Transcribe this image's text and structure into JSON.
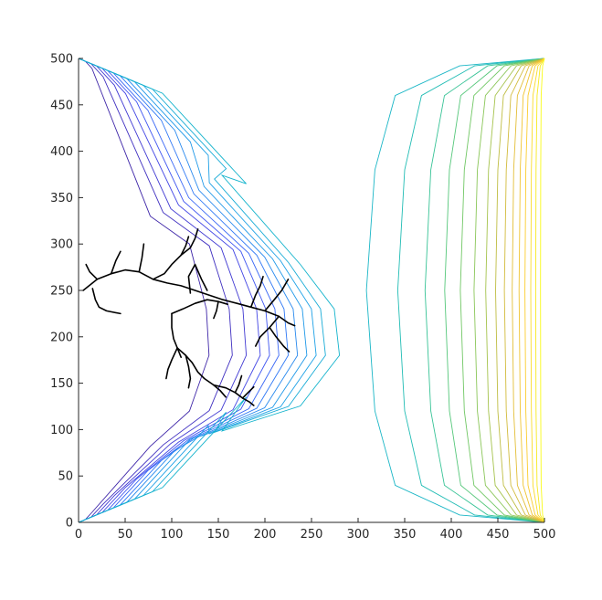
{
  "chart_data": {
    "type": "contour",
    "title": "",
    "xlabel": "",
    "ylabel": "",
    "xlim": [
      0,
      500
    ],
    "ylim": [
      0,
      500
    ],
    "grid": false,
    "x_ticks": [
      "0",
      "50",
      "100",
      "150",
      "200",
      "250",
      "300",
      "350",
      "400",
      "450",
      "500"
    ],
    "y_ticks": [
      "0",
      "50",
      "100",
      "150",
      "200",
      "250",
      "300",
      "350",
      "400",
      "450",
      "500"
    ],
    "colormap": [
      "#3e26a8",
      "#4745f0",
      "#2f78f5",
      "#1ca0e6",
      "#13b8c4",
      "#37c396",
      "#8ac658",
      "#d2bb3b",
      "#fdc82f",
      "#f9fb15"
    ],
    "cluster_color": "#000000",
    "left_contours": [
      {
        "level": 1,
        "color": "#3e26a8",
        "y_offset": 12,
        "reach": 140
      },
      {
        "level": 2,
        "color": "#3f2fc0",
        "y_offset": 22,
        "reach": 165
      },
      {
        "level": 3,
        "color": "#4039d2",
        "y_offset": 32,
        "reach": 180
      },
      {
        "level": 4,
        "color": "#4245e4",
        "y_offset": 42,
        "reach": 195
      },
      {
        "level": 5,
        "color": "#3f55f0",
        "y_offset": 52,
        "reach": 205
      },
      {
        "level": 6,
        "color": "#3866f5",
        "y_offset": 62,
        "reach": 215
      },
      {
        "level": 7,
        "color": "#2f78f5",
        "y_offset": 74,
        "reach": 225
      },
      {
        "level": 8,
        "color": "#2889ee",
        "y_offset": 86,
        "reach": 235
      },
      {
        "level": 9,
        "color": "#1f98e8",
        "y_offset": 100,
        "reach": 245
      },
      {
        "level": 10,
        "color": "#1ca0e6",
        "y_offset": 116,
        "reach": 255
      },
      {
        "level": 11,
        "color": "#17abd6",
        "y_offset": 132,
        "reach": 265
      },
      {
        "level": 12,
        "color": "#13b3cc",
        "y_offset": 150,
        "reach": 280
      }
    ],
    "right_contours": [
      {
        "level": 1,
        "color": "#1ab6c6",
        "x": 318
      },
      {
        "level": 2,
        "color": "#20bcb4",
        "x": 350
      },
      {
        "level": 3,
        "color": "#37c396",
        "x": 378
      },
      {
        "level": 4,
        "color": "#55c77a",
        "x": 398
      },
      {
        "level": 5,
        "color": "#70c764",
        "x": 414
      },
      {
        "level": 6,
        "color": "#8ac658",
        "x": 428
      },
      {
        "level": 7,
        "color": "#a5c34c",
        "x": 440
      },
      {
        "level": 8,
        "color": "#bfbd42",
        "x": 450
      },
      {
        "level": 9,
        "color": "#d2bb3b",
        "x": 459
      },
      {
        "level": 10,
        "color": "#e3be36",
        "x": 467
      },
      {
        "level": 11,
        "color": "#f0c431",
        "x": 474
      },
      {
        "level": 12,
        "color": "#fbcd2e",
        "x": 480
      },
      {
        "level": 13,
        "color": "#fadb28",
        "x": 486
      },
      {
        "level": 14,
        "color": "#f7ea1e",
        "x": 491
      },
      {
        "level": 15,
        "color": "#f9fb15",
        "x": 496
      }
    ],
    "cluster_branches": [
      [
        [
          5,
          250
        ],
        [
          20,
          262
        ],
        [
          35,
          268
        ],
        [
          50,
          272
        ],
        [
          65,
          270
        ],
        [
          80,
          262
        ],
        [
          95,
          258
        ],
        [
          110,
          255
        ],
        [
          125,
          250
        ],
        [
          140,
          245
        ],
        [
          155,
          240
        ],
        [
          170,
          236
        ],
        [
          185,
          232
        ],
        [
          200,
          228
        ],
        [
          215,
          222
        ],
        [
          225,
          215
        ],
        [
          232,
          212
        ]
      ],
      [
        [
          65,
          270
        ],
        [
          68,
          285
        ],
        [
          70,
          300
        ]
      ],
      [
        [
          80,
          262
        ],
        [
          92,
          268
        ],
        [
          100,
          278
        ],
        [
          110,
          288
        ],
        [
          120,
          296
        ],
        [
          125,
          306
        ],
        [
          128,
          316
        ]
      ],
      [
        [
          110,
          288
        ],
        [
          115,
          298
        ],
        [
          118,
          308
        ]
      ],
      [
        [
          35,
          268
        ],
        [
          40,
          282
        ],
        [
          45,
          292
        ]
      ],
      [
        [
          20,
          262
        ],
        [
          12,
          270
        ],
        [
          8,
          278
        ]
      ],
      [
        [
          15,
          252
        ],
        [
          18,
          240
        ],
        [
          22,
          232
        ],
        [
          30,
          228
        ],
        [
          45,
          225
        ]
      ],
      [
        [
          120,
          247
        ],
        [
          118,
          265
        ],
        [
          125,
          278
        ],
        [
          132,
          262
        ],
        [
          138,
          250
        ]
      ],
      [
        [
          100,
          225
        ],
        [
          112,
          230
        ],
        [
          125,
          236
        ],
        [
          138,
          240
        ],
        [
          150,
          238
        ],
        [
          160,
          235
        ]
      ],
      [
        [
          100,
          225
        ],
        [
          100,
          210
        ],
        [
          102,
          198
        ],
        [
          106,
          188
        ],
        [
          110,
          178
        ]
      ],
      [
        [
          106,
          188
        ],
        [
          100,
          175
        ],
        [
          96,
          165
        ],
        [
          94,
          155
        ]
      ],
      [
        [
          106,
          188
        ],
        [
          115,
          180
        ],
        [
          122,
          172
        ],
        [
          128,
          162
        ],
        [
          135,
          155
        ],
        [
          145,
          148
        ],
        [
          152,
          142
        ],
        [
          158,
          135
        ]
      ],
      [
        [
          115,
          180
        ],
        [
          118,
          168
        ],
        [
          120,
          155
        ],
        [
          118,
          145
        ]
      ],
      [
        [
          145,
          148
        ],
        [
          158,
          145
        ],
        [
          168,
          140
        ],
        [
          176,
          134
        ],
        [
          183,
          130
        ],
        [
          188,
          126
        ]
      ],
      [
        [
          168,
          140
        ],
        [
          172,
          148
        ],
        [
          175,
          158
        ]
      ],
      [
        [
          176,
          134
        ],
        [
          182,
          140
        ],
        [
          188,
          146
        ]
      ],
      [
        [
          150,
          238
        ],
        [
          148,
          228
        ],
        [
          145,
          220
        ]
      ],
      [
        [
          185,
          232
        ],
        [
          190,
          245
        ],
        [
          195,
          255
        ],
        [
          198,
          265
        ]
      ],
      [
        [
          200,
          228
        ],
        [
          210,
          240
        ],
        [
          218,
          250
        ],
        [
          225,
          262
        ]
      ],
      [
        [
          215,
          222
        ],
        [
          205,
          210
        ],
        [
          195,
          200
        ],
        [
          190,
          190
        ]
      ],
      [
        [
          205,
          210
        ],
        [
          212,
          200
        ],
        [
          220,
          190
        ],
        [
          226,
          184
        ]
      ]
    ]
  }
}
